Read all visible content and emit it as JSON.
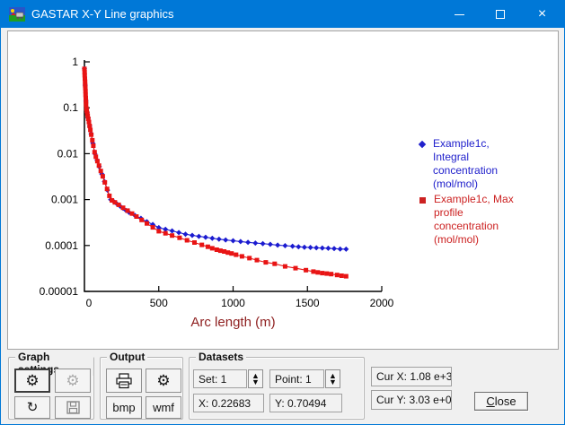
{
  "window": {
    "title": "GASTAR X-Y Line graphics"
  },
  "icons": {
    "app": "gastar-landscape-icon",
    "minimize": "–",
    "maximize": "▢",
    "close": "×",
    "gear": "⚙",
    "refresh": "↻",
    "printer": "svg-printer-shape",
    "save": "svg-floppy-shape",
    "spinner_up": "▲",
    "spinner_down": "▼"
  },
  "colors": {
    "titlebar": "#0078d7",
    "dialog_bg": "#f0f0f0",
    "axis_label": "#8e1f1f",
    "series_blue": "#1b1bd0",
    "series_red": "#e81414"
  },
  "chart_data": {
    "type": "line",
    "title": "",
    "xlabel": "Arc length (m)",
    "ylabel": "",
    "xlim": [
      0,
      2000
    ],
    "x_ticks": [
      0,
      500,
      1000,
      1500,
      2000
    ],
    "y_scale": "log",
    "ylim": [
      1e-05,
      1
    ],
    "y_ticks": [
      "1",
      "0.1",
      "0.01",
      "0.001",
      "0.0001",
      "0.00001"
    ],
    "grid": false,
    "legend_position": "right",
    "series": [
      {
        "name": "Example1c, Integral concentration (mol/mol)",
        "color": "#1b1bd0",
        "marker": "diamond",
        "x": [
          0.23,
          5,
          10,
          18,
          25,
          35,
          45,
          57,
          70,
          85,
          100,
          117,
          135,
          155,
          177,
          200,
          220,
          240,
          260,
          280,
          300,
          340,
          380,
          420,
          460,
          500,
          545,
          590,
          635,
          680,
          725,
          770,
          815,
          860,
          905,
          950,
          1000,
          1050,
          1100,
          1150,
          1200,
          1250,
          1300,
          1350,
          1400,
          1440,
          1480,
          1520,
          1560,
          1600,
          1640,
          1680,
          1720,
          1760
        ],
        "y": [
          0.705,
          0.31,
          0.139,
          0.079,
          0.06,
          0.04,
          0.027,
          0.0167,
          0.01,
          0.0072,
          0.0052,
          0.0036,
          0.00247,
          0.0016,
          0.001,
          0.00089,
          0.0008,
          0.00072,
          0.00065,
          0.00058,
          0.000525,
          0.00045,
          0.00039,
          0.00033,
          0.000286,
          0.000245,
          0.000226,
          0.000208,
          0.000191,
          0.000176,
          0.000166,
          0.000158,
          0.000151,
          0.000144,
          0.000137,
          0.000132,
          0.000127,
          0.000122,
          0.000117,
          0.000113,
          0.00011,
          0.000106,
          0.000102,
          9.9e-05,
          9.65e-05,
          9.4e-05,
          9.2e-05,
          9.05e-05,
          8.9e-05,
          8.8e-05,
          8.7e-05,
          8.55e-05,
          8.4e-05,
          8.3e-05
        ]
      },
      {
        "name": "Example1c, Max profile concentration (mol/mol)",
        "color": "#e81414",
        "marker": "square",
        "x": [
          0.23,
          1,
          2,
          3,
          4,
          5,
          6,
          7,
          8,
          9,
          10,
          11,
          13,
          16,
          19,
          22,
          26,
          30,
          35,
          40,
          46,
          53,
          60,
          68,
          77,
          87,
          98,
          110,
          123,
          137,
          152,
          168,
          185,
          205,
          230,
          260,
          290,
          320,
          350,
          385,
          420,
          460,
          500,
          545,
          590,
          640,
          690,
          740,
          790,
          830,
          860,
          890,
          915,
          940,
          965,
          990,
          1020,
          1060,
          1110,
          1160,
          1220,
          1280,
          1350,
          1420,
          1490,
          1540,
          1570,
          1600,
          1630,
          1660,
          1700,
          1730,
          1760
        ],
        "y": [
          0.705,
          0.6,
          0.51,
          0.43,
          0.37,
          0.31,
          0.27,
          0.23,
          0.19,
          0.163,
          0.139,
          0.118,
          0.096,
          0.085,
          0.0757,
          0.067,
          0.0574,
          0.049,
          0.0401,
          0.0329,
          0.0259,
          0.0196,
          0.0149,
          0.0108,
          0.0086,
          0.0069,
          0.0055,
          0.0042,
          0.0032,
          0.00237,
          0.00171,
          0.00121,
          0.00096,
          0.00087,
          0.00077,
          0.000665,
          0.000574,
          0.000495,
          0.000427,
          0.00036,
          0.000303,
          0.000248,
          0.000204,
          0.000184,
          0.000165,
          0.000147,
          0.00013,
          0.000116,
          0.000103,
          9.4e-05,
          8.7e-05,
          8.1e-05,
          7.7e-05,
          7.4e-05,
          7e-05,
          6.7e-05,
          6.3e-05,
          5.8e-05,
          5.3e-05,
          4.8e-05,
          4.3e-05,
          4e-05,
          3.5e-05,
          3.2e-05,
          2.9e-05,
          2.7e-05,
          2.6e-05,
          2.5e-05,
          2.45e-05,
          2.38e-05,
          2.28e-05,
          2.2e-05,
          2.14e-05
        ]
      }
    ],
    "legend": [
      {
        "lines": [
          "Example1c,",
          "Integral",
          "concentration",
          "(mol/mol)"
        ],
        "color": "#2121cc",
        "marker": "diamond"
      },
      {
        "lines": [
          "Example1c, Max",
          "profile",
          "concentration",
          "(mol/mol)"
        ],
        "color": "#cc2121",
        "marker": "square"
      }
    ]
  },
  "groups": {
    "graph_settings": "Graph settings",
    "output": "Output",
    "datasets": "Datasets"
  },
  "output_buttons": {
    "bmp": "bmp",
    "wmf": "wmf"
  },
  "datasets": {
    "set": "Set: 1",
    "point": "Point: 1",
    "x": "X: 0.22683",
    "y": "Y: 0.70494"
  },
  "cursor": {
    "x": "Cur X: 1.08 e+3",
    "y": "Cur Y: 3.03 e+0"
  },
  "close": {
    "initial": "C",
    "rest": "lose"
  }
}
